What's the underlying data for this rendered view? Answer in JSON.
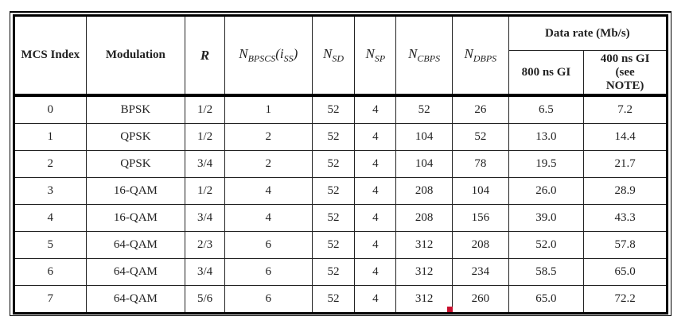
{
  "table": {
    "headers": {
      "mcs": "MCS Index",
      "modulation": "Modulation",
      "r": "R",
      "nbpscs": {
        "base": "N",
        "sub": "BPSCS",
        "suffix": "(i",
        "suffix_sub": "SS",
        "close": ")"
      },
      "nsd": {
        "base": "N",
        "sub": "SD"
      },
      "nsp": {
        "base": "N",
        "sub": "SP"
      },
      "ncbps": {
        "base": "N",
        "sub": "CBPS"
      },
      "ndbps": {
        "base": "N",
        "sub": "DBPS"
      },
      "data_rate": "Data rate (Mb/s)",
      "gi800": "800 ns GI",
      "gi400": "400 ns GI (see NOTE)"
    },
    "rows": [
      [
        "0",
        "BPSK",
        "1/2",
        "1",
        "52",
        "4",
        "52",
        "26",
        "6.5",
        "7.2"
      ],
      [
        "1",
        "QPSK",
        "1/2",
        "2",
        "52",
        "4",
        "104",
        "52",
        "13.0",
        "14.4"
      ],
      [
        "2",
        "QPSK",
        "3/4",
        "2",
        "52",
        "4",
        "104",
        "78",
        "19.5",
        "21.7"
      ],
      [
        "3",
        "16-QAM",
        "1/2",
        "4",
        "52",
        "4",
        "208",
        "104",
        "26.0",
        "28.9"
      ],
      [
        "4",
        "16-QAM",
        "3/4",
        "4",
        "52",
        "4",
        "208",
        "156",
        "39.0",
        "43.3"
      ],
      [
        "5",
        "64-QAM",
        "2/3",
        "6",
        "52",
        "4",
        "312",
        "208",
        "52.0",
        "57.8"
      ],
      [
        "6",
        "64-QAM",
        "3/4",
        "6",
        "52",
        "4",
        "312",
        "234",
        "58.5",
        "65.0"
      ],
      [
        "7",
        "64-QAM",
        "5/6",
        "6",
        "52",
        "4",
        "312",
        "260",
        "65.0",
        "72.2"
      ]
    ]
  },
  "colors": {
    "marker": "#c8102e"
  }
}
